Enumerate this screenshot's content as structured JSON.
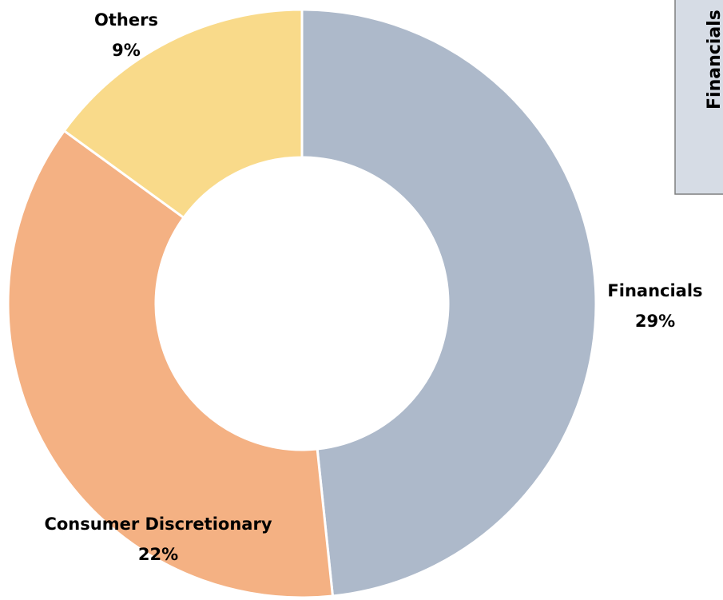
{
  "chart_data": {
    "type": "donut",
    "categories": [
      "Financials",
      "Consumer Discretionary",
      "Others"
    ],
    "values": [
      29,
      22,
      9
    ],
    "value_labels": [
      "29%",
      "22%",
      "9%"
    ],
    "colors": [
      "#adb9ca",
      "#f4b183",
      "#f9da8a"
    ],
    "side_label": "Financials"
  }
}
